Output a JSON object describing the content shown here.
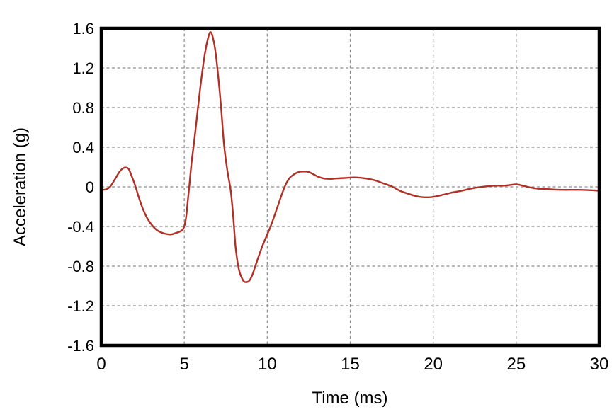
{
  "page": {
    "background": "#ffffff"
  },
  "chart_data": {
    "type": "line",
    "title": "",
    "xlabel": "Time (ms)",
    "ylabel": "Acceleration (g)",
    "xlim": [
      0,
      30
    ],
    "ylim": [
      -1.6,
      1.6
    ],
    "xtick_values": [
      0,
      5,
      10,
      15,
      20,
      25,
      30
    ],
    "xtick_labels": [
      "0",
      "5",
      "10",
      "15",
      "20",
      "25",
      "30"
    ],
    "ytick_values": [
      1.6,
      1.2,
      0.8,
      0.4,
      0,
      -0.4,
      -0.8,
      -1.2,
      -1.6
    ],
    "ytick_labels": [
      "1.6",
      "1.2",
      "0.8",
      "0.4",
      "0",
      "-0.4",
      "-0.8",
      "-1.2",
      "-1.6"
    ],
    "x_gridlines": [
      5,
      10,
      15,
      20,
      25
    ],
    "y_gridlines": [
      1.2,
      0.8,
      0.4,
      0,
      -0.4,
      -0.8,
      -1.2
    ],
    "grid": "dashed",
    "legend_position": "none",
    "line_color": "#b12f24",
    "axis_color": "#000000",
    "grid_color": "#8c8c8c",
    "series": [
      {
        "name": "acceleration",
        "points": [
          [
            0.0,
            -0.03
          ],
          [
            0.3,
            -0.025
          ],
          [
            0.55,
            0.005
          ],
          [
            0.8,
            0.07
          ],
          [
            1.05,
            0.14
          ],
          [
            1.25,
            0.18
          ],
          [
            1.45,
            0.195
          ],
          [
            1.65,
            0.18
          ],
          [
            1.85,
            0.1
          ],
          [
            2.05,
            0.01
          ],
          [
            2.25,
            -0.1
          ],
          [
            2.5,
            -0.22
          ],
          [
            2.75,
            -0.31
          ],
          [
            3.0,
            -0.375
          ],
          [
            3.3,
            -0.43
          ],
          [
            3.6,
            -0.46
          ],
          [
            3.9,
            -0.475
          ],
          [
            4.2,
            -0.48
          ],
          [
            4.5,
            -0.465
          ],
          [
            4.75,
            -0.45
          ],
          [
            4.95,
            -0.42
          ],
          [
            5.1,
            -0.32
          ],
          [
            5.2,
            -0.16
          ],
          [
            5.3,
            0.0
          ],
          [
            5.45,
            0.26
          ],
          [
            5.6,
            0.46
          ],
          [
            5.8,
            0.76
          ],
          [
            6.0,
            1.05
          ],
          [
            6.2,
            1.3
          ],
          [
            6.35,
            1.44
          ],
          [
            6.5,
            1.54
          ],
          [
            6.6,
            1.56
          ],
          [
            6.72,
            1.51
          ],
          [
            6.85,
            1.4
          ],
          [
            7.0,
            1.19
          ],
          [
            7.2,
            0.84
          ],
          [
            7.4,
            0.42
          ],
          [
            7.6,
            0.16
          ],
          [
            7.8,
            -0.04
          ],
          [
            7.95,
            -0.3
          ],
          [
            8.1,
            -0.62
          ],
          [
            8.3,
            -0.84
          ],
          [
            8.5,
            -0.93
          ],
          [
            8.65,
            -0.96
          ],
          [
            8.9,
            -0.95
          ],
          [
            9.1,
            -0.89
          ],
          [
            9.3,
            -0.79
          ],
          [
            9.7,
            -0.6
          ],
          [
            10.2,
            -0.4
          ],
          [
            10.6,
            -0.21
          ],
          [
            11.0,
            -0.02
          ],
          [
            11.3,
            0.08
          ],
          [
            11.6,
            0.125
          ],
          [
            11.9,
            0.15
          ],
          [
            12.2,
            0.155
          ],
          [
            12.5,
            0.15
          ],
          [
            12.8,
            0.125
          ],
          [
            13.1,
            0.1
          ],
          [
            13.4,
            0.085
          ],
          [
            13.8,
            0.08
          ],
          [
            14.2,
            0.085
          ],
          [
            14.7,
            0.09
          ],
          [
            15.2,
            0.095
          ],
          [
            15.7,
            0.09
          ],
          [
            16.1,
            0.08
          ],
          [
            16.5,
            0.065
          ],
          [
            17.0,
            0.035
          ],
          [
            17.5,
            0.005
          ],
          [
            18.0,
            -0.04
          ],
          [
            18.5,
            -0.07
          ],
          [
            19.0,
            -0.095
          ],
          [
            19.4,
            -0.105
          ],
          [
            19.8,
            -0.105
          ],
          [
            20.2,
            -0.095
          ],
          [
            20.7,
            -0.075
          ],
          [
            21.2,
            -0.055
          ],
          [
            21.7,
            -0.04
          ],
          [
            22.2,
            -0.02
          ],
          [
            22.7,
            -0.005
          ],
          [
            23.2,
            0.005
          ],
          [
            23.7,
            0.012
          ],
          [
            24.2,
            0.012
          ],
          [
            24.6,
            0.018
          ],
          [
            25.0,
            0.025
          ],
          [
            25.4,
            0.012
          ],
          [
            25.8,
            -0.005
          ],
          [
            26.3,
            -0.018
          ],
          [
            26.8,
            -0.022
          ],
          [
            27.3,
            -0.027
          ],
          [
            27.8,
            -0.03
          ],
          [
            28.3,
            -0.03
          ],
          [
            28.8,
            -0.03
          ],
          [
            29.3,
            -0.033
          ],
          [
            29.7,
            -0.036
          ],
          [
            30.0,
            -0.04
          ]
        ]
      }
    ]
  }
}
